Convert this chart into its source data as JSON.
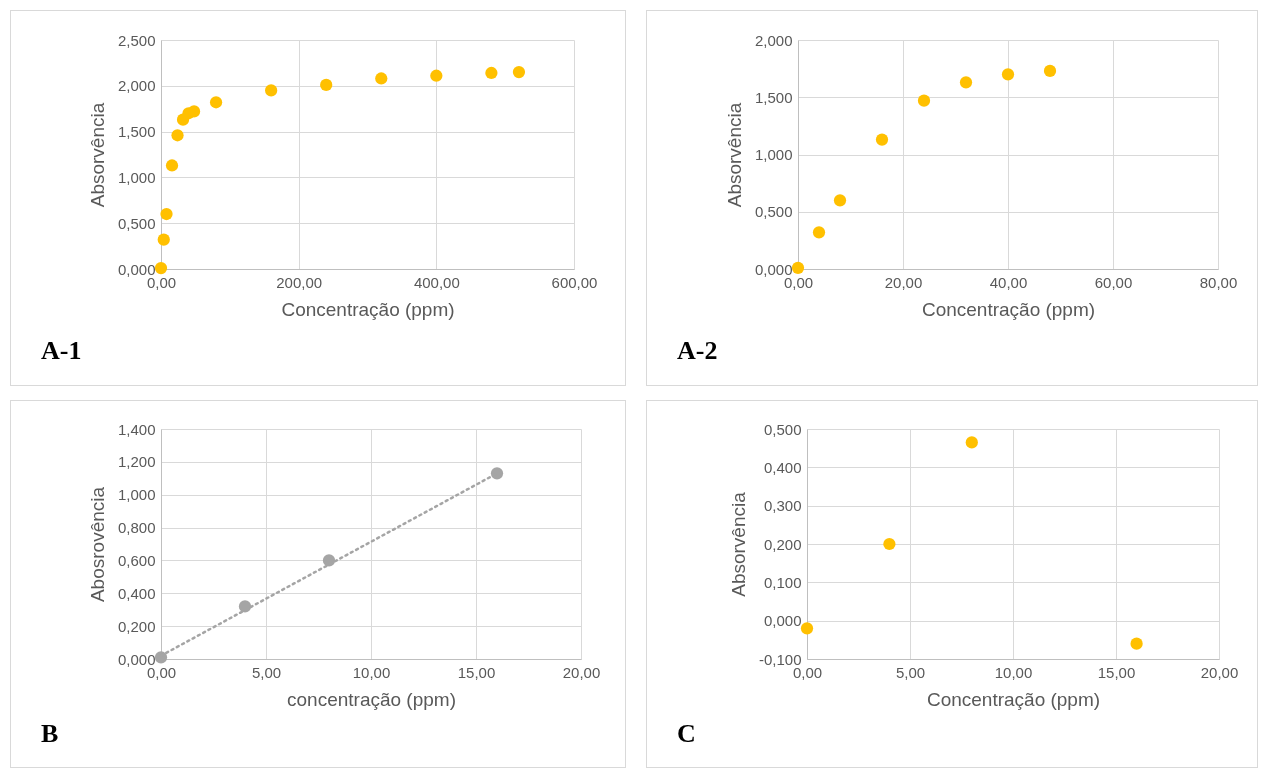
{
  "chart_data": [
    {
      "type": "scatter",
      "xlabel": "Concentração (ppm)",
      "ylabel": "Absorvência",
      "annotations": [
        "A-1"
      ],
      "marker": "circle",
      "grid": true,
      "xlim": [
        0,
        600
      ],
      "xticks": [
        {
          "value": 0,
          "label": "0,00"
        },
        {
          "value": 200,
          "label": "200,00"
        },
        {
          "value": 400,
          "label": "400,00"
        },
        {
          "value": 600,
          "label": "600,00"
        }
      ],
      "ylim": [
        0,
        2.5
      ],
      "yticks": [
        {
          "value": 0,
          "label": "0,000"
        },
        {
          "value": 0.5,
          "label": "0,500"
        },
        {
          "value": 1,
          "label": "1,000"
        },
        {
          "value": 1.5,
          "label": "1,500"
        },
        {
          "value": 2,
          "label": "2,000"
        },
        {
          "value": 2.5,
          "label": "2,500"
        }
      ],
      "series": [
        {
          "color": "#ffc000",
          "x": [
            0,
            4,
            8,
            16,
            24,
            32,
            40,
            48,
            80,
            160,
            240,
            320,
            400,
            480,
            520
          ],
          "values": [
            0.01,
            0.32,
            0.6,
            1.13,
            1.46,
            1.63,
            1.7,
            1.72,
            1.82,
            1.95,
            2.01,
            2.08,
            2.11,
            2.14,
            2.15
          ]
        }
      ]
    },
    {
      "type": "scatter",
      "xlabel": "Concentração (ppm)",
      "ylabel": "Absorvência",
      "annotations": [
        "A-2"
      ],
      "marker": "circle",
      "grid": true,
      "xlim": [
        0,
        80
      ],
      "xticks": [
        {
          "value": 0,
          "label": "0,00"
        },
        {
          "value": 20,
          "label": "20,00"
        },
        {
          "value": 40,
          "label": "40,00"
        },
        {
          "value": 60,
          "label": "60,00"
        },
        {
          "value": 80,
          "label": "80,00"
        }
      ],
      "ylim": [
        0,
        2
      ],
      "yticks": [
        {
          "value": 0,
          "label": "0,000"
        },
        {
          "value": 0.5,
          "label": "0,500"
        },
        {
          "value": 1,
          "label": "1,000"
        },
        {
          "value": 1.5,
          "label": "1,500"
        },
        {
          "value": 2,
          "label": "2,000"
        }
      ],
      "series": [
        {
          "color": "#ffc000",
          "x": [
            0,
            4,
            8,
            16,
            24,
            32,
            40,
            48
          ],
          "values": [
            0.01,
            0.32,
            0.6,
            1.13,
            1.47,
            1.63,
            1.7,
            1.73
          ]
        }
      ]
    },
    {
      "type": "scatter",
      "xlabel": "concentração (ppm)",
      "ylabel": "Abosrovência",
      "annotations": [
        "B"
      ],
      "marker": "circle",
      "grid": true,
      "xlim": [
        0,
        20
      ],
      "xticks": [
        {
          "value": 0,
          "label": "0,00"
        },
        {
          "value": 5,
          "label": "5,00"
        },
        {
          "value": 10,
          "label": "10,00"
        },
        {
          "value": 15,
          "label": "15,00"
        },
        {
          "value": 20,
          "label": "20,00"
        }
      ],
      "ylim": [
        0,
        1.4
      ],
      "yticks": [
        {
          "value": 0,
          "label": "0,000"
        },
        {
          "value": 0.2,
          "label": "0,200"
        },
        {
          "value": 0.4,
          "label": "0,400"
        },
        {
          "value": 0.6,
          "label": "0,600"
        },
        {
          "value": 0.8,
          "label": "0,800"
        },
        {
          "value": 1,
          "label": "1,000"
        },
        {
          "value": 1.2,
          "label": "1,200"
        },
        {
          "value": 1.4,
          "label": "1,400"
        }
      ],
      "series": [
        {
          "color": "#a5a5a5",
          "x": [
            0,
            4,
            8,
            16
          ],
          "values": [
            0.01,
            0.32,
            0.6,
            1.13
          ]
        },
        {
          "type": "line",
          "color": "#a5a5a5",
          "line_style": "dotted",
          "marker": "none",
          "x": [
            0,
            16
          ],
          "values": [
            0.02,
            1.13
          ]
        }
      ]
    },
    {
      "type": "scatter",
      "xlabel": "Concentração (ppm)",
      "ylabel": "Absorvência",
      "annotations": [
        "C"
      ],
      "marker": "circle",
      "grid": true,
      "xlim": [
        0,
        20
      ],
      "xticks": [
        {
          "value": 0,
          "label": "0,00"
        },
        {
          "value": 5,
          "label": "5,00"
        },
        {
          "value": 10,
          "label": "10,00"
        },
        {
          "value": 15,
          "label": "15,00"
        },
        {
          "value": 20,
          "label": "20,00"
        }
      ],
      "ylim": [
        -0.1,
        0.5
      ],
      "yticks": [
        {
          "value": -0.1,
          "label": "-0,100"
        },
        {
          "value": 0,
          "label": "0,000"
        },
        {
          "value": 0.1,
          "label": "0,100"
        },
        {
          "value": 0.2,
          "label": "0,200"
        },
        {
          "value": 0.3,
          "label": "0,300"
        },
        {
          "value": 0.4,
          "label": "0,400"
        },
        {
          "value": 0.5,
          "label": "0,500"
        }
      ],
      "series": [
        {
          "color": "#ffc000",
          "x": [
            0,
            4,
            8,
            16
          ],
          "values": [
            -0.02,
            0.2,
            0.465,
            -0.06
          ]
        }
      ]
    }
  ]
}
